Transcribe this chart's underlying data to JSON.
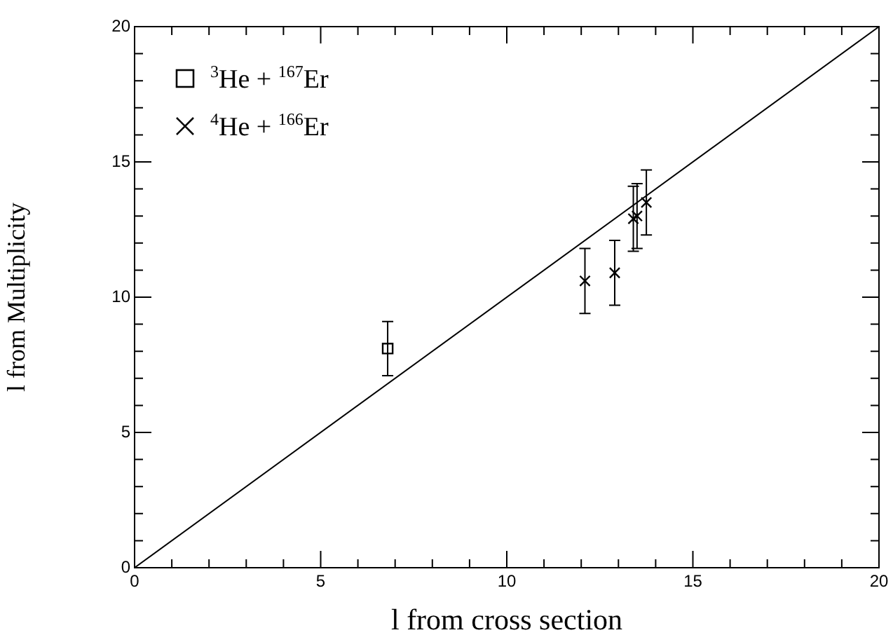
{
  "chart_data": {
    "type": "scatter",
    "xlabel": "l from cross section",
    "ylabel": "l from Multiplicity",
    "xlim": [
      0,
      20
    ],
    "ylim": [
      0,
      20
    ],
    "xticks": [
      0,
      {
        "value": 1,
        "label": null
      },
      {
        "value": 2,
        "label": null
      },
      {
        "value": 3,
        "label": null
      },
      {
        "value": 4,
        "label": null
      },
      5,
      {
        "value": 6,
        "label": null
      },
      {
        "value": 7,
        "label": null
      },
      {
        "value": 8,
        "label": null
      },
      {
        "value": 9,
        "label": null
      },
      10,
      {
        "value": 11,
        "label": null
      },
      {
        "value": 12,
        "label": null
      },
      {
        "value": 13,
        "label": null
      },
      {
        "value": 14,
        "label": null
      },
      15,
      {
        "value": 16,
        "label": null
      },
      {
        "value": 17,
        "label": null
      },
      {
        "value": 18,
        "label": null
      },
      {
        "value": 19,
        "label": null
      },
      20
    ],
    "yticks": [
      0,
      {
        "value": 1,
        "label": null
      },
      {
        "value": 2,
        "label": null
      },
      {
        "value": 3,
        "label": null
      },
      {
        "value": 4,
        "label": null
      },
      5,
      {
        "value": 6,
        "label": null
      },
      {
        "value": 7,
        "label": null
      },
      {
        "value": 8,
        "label": null
      },
      {
        "value": 9,
        "label": null
      },
      10,
      {
        "value": 11,
        "label": null
      },
      {
        "value": 12,
        "label": null
      },
      {
        "value": 13,
        "label": null
      },
      {
        "value": 14,
        "label": null
      },
      15,
      {
        "value": 16,
        "label": null
      },
      {
        "value": 17,
        "label": null
      },
      {
        "value": 18,
        "label": null
      },
      {
        "value": 19,
        "label": null
      },
      20
    ],
    "grid": false,
    "legend": "top left",
    "series": [
      {
        "name": "$^{3}$He + $^{167}$Er",
        "color": "#000000",
        "marker": "square",
        "x": [
          6.8
        ],
        "values": [
          8.1
        ],
        "errors": [
          1.0
        ]
      },
      {
        "name": "$^{4}$He + $^{166}$Er",
        "color": "#000000",
        "marker": "cross",
        "x": [
          12.1,
          12.9,
          13.4,
          13.5,
          13.75
        ],
        "values": [
          10.6,
          10.9,
          12.9,
          13.0,
          13.5
        ],
        "errors": [
          1.2,
          1.2,
          1.2,
          1.2,
          1.2
        ]
      },
      {
        "type": "line",
        "color": "#000000",
        "marker": "none",
        "line_style": "solid",
        "x": [
          0,
          20
        ],
        "values": [
          0,
          20
        ]
      }
    ]
  }
}
